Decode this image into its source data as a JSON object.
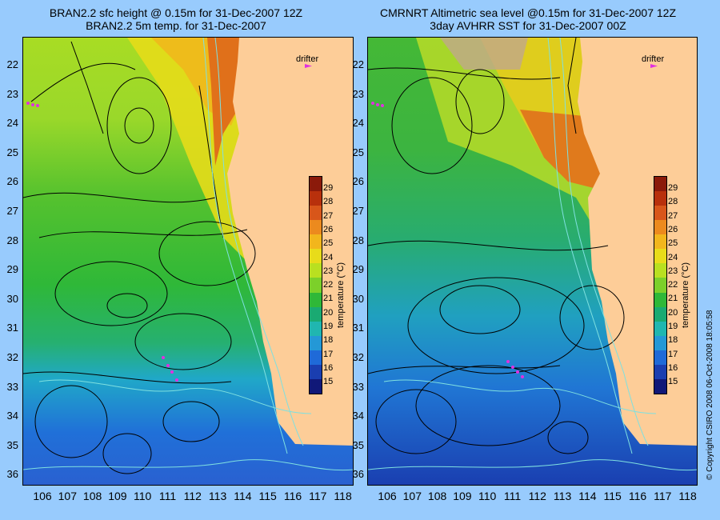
{
  "left_panel": {
    "title_line1": "BRAN2.2 sfc height @ 0.15m for 31-Dec-2007 12Z",
    "title_line2": "BRAN2.2 5m temp. for 31-Dec-2007",
    "drifter_label": "drifter"
  },
  "right_panel": {
    "title_line1": "CMRNRT Altimetric sea level  @0.15m  for 31-Dec-2007 12Z",
    "title_line2": "3day AVHRR SST for 31-Dec-2007 00Z",
    "drifter_label": "drifter"
  },
  "axes": {
    "lat_labels": [
      "22",
      "23",
      "24",
      "25",
      "26",
      "27",
      "28",
      "29",
      "30",
      "31",
      "32",
      "33",
      "34",
      "35",
      "36"
    ],
    "lon_labels": [
      "106",
      "107",
      "108",
      "109",
      "110",
      "111",
      "112",
      "113",
      "114",
      "115",
      "116",
      "117",
      "118"
    ]
  },
  "colorbar": {
    "title": "temperature (°C)",
    "labels": [
      "29",
      "28",
      "27",
      "26",
      "25",
      "24",
      "23",
      "22",
      "21",
      "20",
      "19",
      "18",
      "17",
      "16",
      "15"
    ],
    "colors": [
      "#8b1a0a",
      "#b8300c",
      "#d8561a",
      "#ec8a1e",
      "#f2b61c",
      "#e8dc1a",
      "#b9e020",
      "#7cd02a",
      "#2fb838",
      "#1aaa72",
      "#20b6b0",
      "#2498d6",
      "#1f6ad8",
      "#1a3eb0",
      "#101878"
    ]
  },
  "copyright": "© Copyright CSIRO 2008   06-Oct-2008 18:05:58",
  "colors": {
    "background": "#98cbfd",
    "land": "#fdcd98",
    "contour": "#000000",
    "isobath": "#7fe0e0",
    "drifter": "#e030e0"
  }
}
